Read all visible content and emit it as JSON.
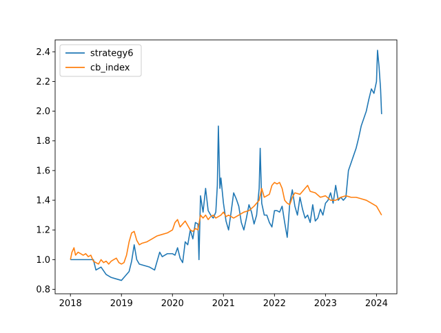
{
  "chart_data": {
    "type": "line",
    "title": "",
    "xlabel": "",
    "ylabel": "",
    "xlim": [
      2017.7,
      2024.4
    ],
    "ylim": [
      0.77,
      2.48
    ],
    "x_ticks": [
      2018,
      2019,
      2020,
      2021,
      2022,
      2023,
      2024
    ],
    "x_tick_labels": [
      "2018",
      "2019",
      "2020",
      "2021",
      "2022",
      "2023",
      "2024"
    ],
    "y_ticks": [
      0.8,
      1.0,
      1.2,
      1.4,
      1.6,
      1.8,
      2.0,
      2.2,
      2.4
    ],
    "y_tick_labels": [
      "0.8",
      "1.0",
      "1.2",
      "1.4",
      "1.6",
      "1.8",
      "2.0",
      "2.2",
      "2.4"
    ],
    "grid": false,
    "legend_position": "upper-left",
    "series": [
      {
        "name": "strategy6",
        "color": "#1f77b4",
        "x": [
          2018.0,
          2018.45,
          2018.5,
          2018.6,
          2018.7,
          2018.8,
          2018.9,
          2019.0,
          2019.05,
          2019.15,
          2019.2,
          2019.25,
          2019.3,
          2019.35,
          2019.45,
          2019.55,
          2019.65,
          2019.75,
          2019.8,
          2019.9,
          2020.0,
          2020.05,
          2020.1,
          2020.15,
          2020.2,
          2020.25,
          2020.3,
          2020.35,
          2020.4,
          2020.45,
          2020.5,
          2020.52,
          2020.55,
          2020.6,
          2020.65,
          2020.7,
          2020.75,
          2020.8,
          2020.85,
          2020.88,
          2020.9,
          2020.93,
          2020.95,
          2021.0,
          2021.05,
          2021.1,
          2021.15,
          2021.2,
          2021.25,
          2021.3,
          2021.35,
          2021.4,
          2021.45,
          2021.5,
          2021.55,
          2021.6,
          2021.65,
          2021.7,
          2021.72,
          2021.75,
          2021.8,
          2021.85,
          2021.9,
          2021.95,
          2022.0,
          2022.05,
          2022.1,
          2022.15,
          2022.2,
          2022.25,
          2022.3,
          2022.35,
          2022.4,
          2022.45,
          2022.5,
          2022.55,
          2022.6,
          2022.65,
          2022.7,
          2022.75,
          2022.8,
          2022.85,
          2022.9,
          2022.95,
          2023.0,
          2023.05,
          2023.1,
          2023.15,
          2023.2,
          2023.25,
          2023.3,
          2023.35,
          2023.4,
          2023.45,
          2023.5,
          2023.55,
          2023.6,
          2023.65,
          2023.7,
          2023.75,
          2023.8,
          2023.85,
          2023.9,
          2023.95,
          2024.0,
          2024.02,
          2024.05,
          2024.08,
          2024.1
        ],
        "values": [
          1.0,
          1.0,
          0.93,
          0.95,
          0.9,
          0.88,
          0.87,
          0.86,
          0.88,
          0.92,
          0.99,
          1.1,
          1.0,
          0.97,
          0.96,
          0.95,
          0.93,
          1.05,
          1.02,
          1.04,
          1.04,
          1.03,
          1.08,
          1.01,
          0.98,
          1.12,
          1.1,
          1.2,
          1.14,
          1.25,
          1.24,
          1.0,
          1.43,
          1.32,
          1.48,
          1.33,
          1.3,
          1.28,
          1.32,
          1.5,
          1.9,
          1.48,
          1.55,
          1.38,
          1.26,
          1.2,
          1.32,
          1.45,
          1.41,
          1.36,
          1.25,
          1.2,
          1.28,
          1.37,
          1.32,
          1.24,
          1.3,
          1.48,
          1.75,
          1.38,
          1.3,
          1.3,
          1.25,
          1.22,
          1.33,
          1.33,
          1.32,
          1.36,
          1.25,
          1.15,
          1.38,
          1.47,
          1.36,
          1.3,
          1.42,
          1.34,
          1.28,
          1.3,
          1.25,
          1.37,
          1.26,
          1.28,
          1.34,
          1.3,
          1.38,
          1.4,
          1.45,
          1.38,
          1.5,
          1.4,
          1.42,
          1.4,
          1.42,
          1.6,
          1.65,
          1.7,
          1.75,
          1.82,
          1.9,
          1.95,
          2.0,
          2.08,
          2.15,
          2.12,
          2.2,
          2.41,
          2.3,
          2.15,
          1.98
        ]
      },
      {
        "name": "cb_index",
        "color": "#ff7f0e",
        "x": [
          2018.0,
          2018.03,
          2018.07,
          2018.1,
          2018.15,
          2018.2,
          2018.25,
          2018.3,
          2018.35,
          2018.4,
          2018.45,
          2018.5,
          2018.55,
          2018.6,
          2018.65,
          2018.7,
          2018.75,
          2018.8,
          2018.85,
          2018.9,
          2018.95,
          2019.0,
          2019.05,
          2019.1,
          2019.15,
          2019.2,
          2019.25,
          2019.3,
          2019.35,
          2019.4,
          2019.5,
          2019.6,
          2019.7,
          2019.8,
          2019.9,
          2020.0,
          2020.05,
          2020.1,
          2020.15,
          2020.2,
          2020.25,
          2020.3,
          2020.35,
          2020.4,
          2020.45,
          2020.5,
          2020.55,
          2020.6,
          2020.65,
          2020.7,
          2020.75,
          2020.8,
          2020.85,
          2020.9,
          2020.95,
          2021.0,
          2021.05,
          2021.1,
          2021.15,
          2021.2,
          2021.3,
          2021.4,
          2021.5,
          2021.6,
          2021.7,
          2021.75,
          2021.8,
          2021.85,
          2021.9,
          2021.95,
          2022.0,
          2022.05,
          2022.1,
          2022.15,
          2022.2,
          2022.25,
          2022.3,
          2022.35,
          2022.4,
          2022.5,
          2022.6,
          2022.65,
          2022.7,
          2022.8,
          2022.9,
          2023.0,
          2023.1,
          2023.2,
          2023.3,
          2023.4,
          2023.5,
          2023.6,
          2023.7,
          2023.8,
          2023.9,
          2024.0,
          2024.05,
          2024.1
        ],
        "values": [
          1.0,
          1.05,
          1.08,
          1.03,
          1.05,
          1.04,
          1.03,
          1.04,
          1.02,
          1.03,
          0.99,
          0.98,
          0.97,
          1.0,
          0.98,
          0.99,
          0.97,
          0.99,
          1.0,
          1.01,
          0.98,
          0.97,
          0.98,
          1.03,
          1.12,
          1.18,
          1.19,
          1.13,
          1.1,
          1.11,
          1.12,
          1.14,
          1.16,
          1.17,
          1.18,
          1.2,
          1.25,
          1.27,
          1.22,
          1.24,
          1.26,
          1.23,
          1.2,
          1.19,
          1.21,
          1.2,
          1.3,
          1.28,
          1.3,
          1.27,
          1.29,
          1.3,
          1.28,
          1.29,
          1.3,
          1.32,
          1.29,
          1.3,
          1.29,
          1.28,
          1.3,
          1.32,
          1.33,
          1.36,
          1.4,
          1.48,
          1.42,
          1.43,
          1.44,
          1.5,
          1.52,
          1.51,
          1.52,
          1.48,
          1.4,
          1.38,
          1.37,
          1.42,
          1.45,
          1.44,
          1.48,
          1.5,
          1.46,
          1.45,
          1.42,
          1.43,
          1.4,
          1.4,
          1.42,
          1.43,
          1.42,
          1.42,
          1.41,
          1.4,
          1.38,
          1.36,
          1.33,
          1.3
        ]
      }
    ]
  }
}
